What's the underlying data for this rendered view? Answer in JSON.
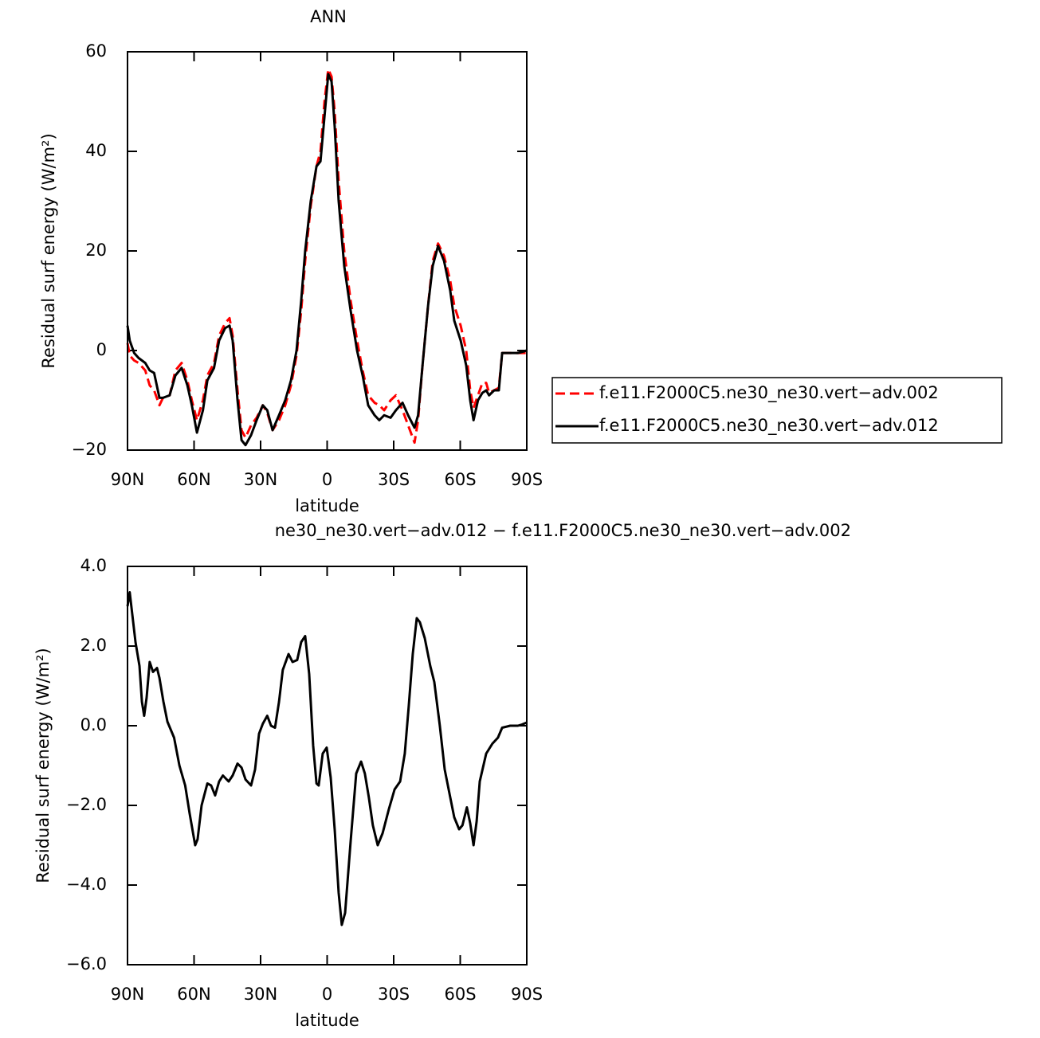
{
  "chart_data": [
    {
      "type": "line",
      "title": "ANN",
      "x_label": "latitude",
      "y_label": "Residual surf energy (W/m²)",
      "x": [
        90,
        89,
        87,
        85,
        82,
        80,
        78,
        75.6,
        74,
        71,
        68.4,
        65.6,
        63,
        61,
        58.7,
        56,
        54,
        51,
        48.7,
        46,
        44,
        42.6,
        40.4,
        38.6,
        36.8,
        34.3,
        31.8,
        29,
        27,
        24.6,
        21.7,
        18.9,
        16.3,
        13.8,
        11.7,
        9.9,
        7.4,
        4.8,
        3,
        1.2,
        -0.5,
        -2,
        -3.4,
        -5.2,
        -7.7,
        -10.6,
        -13.5,
        -16,
        -18.5,
        -21.4,
        -23.5,
        -25.7,
        -28.6,
        -31,
        -34,
        -36.5,
        -39.4,
        -41,
        -43,
        -45.5,
        -47.6,
        -50,
        -52.7,
        -55.5,
        -57.3,
        -60.2,
        -62.7,
        -64.5,
        -66,
        -68,
        -70,
        -71.7,
        -73,
        -75.3,
        -77.4,
        -78.9,
        -82.5,
        -86,
        -90
      ],
      "series": [
        {
          "name": "f.e11.F2000C5.ne30_ne30.vert−adv.002",
          "color": "#ff0000",
          "linestyle": "dashed",
          "values": [
            1.5,
            -1,
            -2,
            -2.5,
            -4,
            -7,
            -8,
            -11,
            -9.5,
            -9,
            -4,
            -2.5,
            -6,
            -10,
            -14,
            -10,
            -5,
            -2.5,
            3,
            5.5,
            6.5,
            3,
            -8,
            -16,
            -17.5,
            -15,
            -13.5,
            -11,
            -12.5,
            -16,
            -14,
            -11,
            -7,
            -1,
            8,
            18,
            29,
            37,
            40,
            50,
            56.5,
            55,
            48,
            34,
            20,
            10,
            2,
            -4,
            -9,
            -10.5,
            -11,
            -12,
            -10,
            -9,
            -12,
            -15,
            -18.5,
            -14,
            -3,
            9,
            18,
            21.5,
            19,
            14,
            9,
            5,
            0,
            -8,
            -11.5,
            -9,
            -6.5,
            -6.5,
            -8.5,
            -8,
            -7.5,
            -0.5,
            -0.5,
            -0.5,
            -0.5
          ]
        },
        {
          "name": "f.e11.F2000C5.ne30_ne30.vert−adv.012",
          "color": "#000000",
          "linestyle": "solid",
          "values": [
            5,
            2,
            -0.5,
            -1.5,
            -2.5,
            -4,
            -4.5,
            -9.5,
            -9.5,
            -9,
            -5,
            -3.5,
            -7,
            -11,
            -16.5,
            -12,
            -6,
            -3.5,
            2,
            4.5,
            5,
            2,
            -10,
            -18,
            -19,
            -17,
            -14,
            -11,
            -12,
            -16,
            -13,
            -10,
            -6,
            0,
            10,
            20,
            30,
            37,
            38,
            47,
            55.5,
            54,
            45,
            30,
            17,
            8,
            0,
            -5,
            -11,
            -13,
            -14,
            -13,
            -13.5,
            -12,
            -10.5,
            -13,
            -15.5,
            -13,
            -3,
            9,
            17,
            21,
            18,
            12,
            6,
            2,
            -3,
            -10,
            -14,
            -10,
            -8.5,
            -8,
            -9,
            -8,
            -8,
            -0.5,
            -0.5,
            -0.5,
            0
          ]
        }
      ],
      "xlim": [
        90,
        -90
      ],
      "xticks": [
        {
          "value": 90,
          "label": "90N"
        },
        {
          "value": 60,
          "label": "60N"
        },
        {
          "value": 30,
          "label": "30N"
        },
        0,
        {
          "value": -30,
          "label": "30S"
        },
        {
          "value": -60,
          "label": "60S"
        },
        {
          "value": -90,
          "label": "90S"
        }
      ],
      "ylim": [
        -20,
        60
      ],
      "yticks": [
        {
          "value": -20,
          "label": "−20"
        },
        0,
        20,
        40,
        60
      ],
      "legend": "right"
    },
    {
      "type": "line",
      "title": "ne30_ne30.vert−adv.012 − f.e11.F2000C5.ne30_ne30.vert−adv.002",
      "x_label": "latitude",
      "y_label": "Residual surf energy (W/m²)",
      "x": [
        90,
        89,
        86.4,
        84.6,
        83.5,
        82.5,
        81.4,
        80,
        78.5,
        76.7,
        75.6,
        73.8,
        72,
        69,
        66.6,
        64,
        62,
        59.5,
        58.4,
        56.6,
        54,
        52.3,
        50.5,
        48.7,
        47,
        44.4,
        42.6,
        40.4,
        38.6,
        36.8,
        34.3,
        32.5,
        30.7,
        29,
        27,
        25.3,
        23.5,
        21.7,
        20,
        17.4,
        15.6,
        13.5,
        11.7,
        9.9,
        8.1,
        6.3,
        4.8,
        3.8,
        2,
        0.2,
        -1.6,
        -3.4,
        -5.2,
        -6.6,
        -8.1,
        -10.6,
        -13.1,
        -15.3,
        -17,
        -18.8,
        -20.6,
        -22.8,
        -25,
        -27.8,
        -30.4,
        -32.9,
        -35,
        -36.8,
        -38.6,
        -40.4,
        -41.8,
        -44,
        -46.5,
        -48.3,
        -50.8,
        -53,
        -55.5,
        -57.3,
        -59.5,
        -61,
        -63,
        -64.5,
        -66,
        -67.4,
        -68.8,
        -71.7,
        -74.5,
        -77,
        -78.9,
        -82.5,
        -86,
        -87.8,
        -90
      ],
      "values": [
        3.0,
        3.35,
        2.1,
        1.5,
        0.6,
        0.25,
        0.7,
        1.6,
        1.35,
        1.45,
        1.2,
        0.6,
        0.1,
        -0.3,
        -1.0,
        -1.5,
        -2.2,
        -3.0,
        -2.85,
        -2.0,
        -1.45,
        -1.5,
        -1.75,
        -1.4,
        -1.25,
        -1.4,
        -1.25,
        -0.95,
        -1.05,
        -1.35,
        -1.5,
        -1.1,
        -0.2,
        0.05,
        0.25,
        0.0,
        -0.05,
        0.6,
        1.4,
        1.8,
        1.6,
        1.65,
        2.1,
        2.25,
        1.3,
        -0.5,
        -1.45,
        -1.5,
        -0.7,
        -0.55,
        -1.3,
        -2.6,
        -4.2,
        -5.0,
        -4.7,
        -2.9,
        -1.2,
        -0.9,
        -1.2,
        -1.8,
        -2.5,
        -3.0,
        -2.7,
        -2.1,
        -1.6,
        -1.4,
        -0.7,
        0.5,
        1.8,
        2.7,
        2.6,
        2.2,
        1.5,
        1.1,
        0.0,
        -1.1,
        -1.8,
        -2.3,
        -2.6,
        -2.5,
        -2.05,
        -2.45,
        -3.0,
        -2.4,
        -1.4,
        -0.7,
        -0.45,
        -0.3,
        -0.05,
        0.0,
        0.0,
        0.03,
        0.08
      ],
      "color": "#000000",
      "linestyle": "solid",
      "xlim": [
        90,
        -90
      ],
      "xticks": [
        {
          "value": 90,
          "label": "90N"
        },
        {
          "value": 60,
          "label": "60N"
        },
        {
          "value": 30,
          "label": "30N"
        },
        0,
        {
          "value": -30,
          "label": "30S"
        },
        {
          "value": -60,
          "label": "60S"
        },
        {
          "value": -90,
          "label": "90S"
        }
      ],
      "ylim": [
        -6,
        4
      ],
      "yticks": [
        {
          "value": -6,
          "label": "−6.0"
        },
        {
          "value": -4,
          "label": "−4.0"
        },
        {
          "value": -2,
          "label": "−2.0"
        },
        {
          "value": 0,
          "label": "0.0"
        },
        {
          "value": 2,
          "label": "2.0"
        },
        {
          "value": 4,
          "label": "4.0"
        }
      ]
    }
  ]
}
